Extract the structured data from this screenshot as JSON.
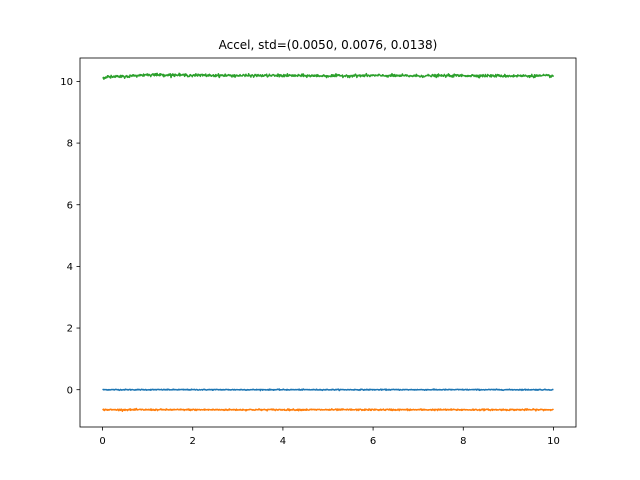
{
  "chart_data": {
    "type": "line",
    "title": "Accel, std=(0.0050, 0.0076, 0.0138)",
    "xlabel": "",
    "ylabel": "",
    "xlim": [
      -0.5,
      10.5
    ],
    "ylim": [
      -1.21,
      10.76
    ],
    "x_ticks": [
      0,
      2,
      4,
      6,
      8,
      10
    ],
    "y_ticks": [
      0,
      2,
      4,
      6,
      8,
      10
    ],
    "grid": false,
    "legend": "none",
    "series": [
      {
        "color": "#1f77b4",
        "x": [
          0,
          1,
          2,
          3,
          4,
          5,
          6,
          7,
          8,
          9,
          10
        ],
        "values": [
          0.0,
          0.0,
          0.0,
          0.0,
          0.0,
          0.0,
          0.0,
          0.0,
          0.0,
          0.0,
          0.0
        ],
        "noise_std": 0.005
      },
      {
        "color": "#ff7f0e",
        "x": [
          0,
          1,
          2,
          3,
          4,
          5,
          6,
          7,
          8,
          9,
          10
        ],
        "values": [
          -0.65,
          -0.65,
          -0.65,
          -0.65,
          -0.65,
          -0.65,
          -0.65,
          -0.65,
          -0.65,
          -0.65,
          -0.65
        ],
        "noise_std": 0.0076
      },
      {
        "color": "#2ca02c",
        "x": [
          0,
          0.5,
          1,
          1.5,
          2,
          3,
          4,
          5,
          6,
          7,
          8,
          9,
          10
        ],
        "values": [
          10.14,
          10.16,
          10.22,
          10.21,
          10.2,
          10.19,
          10.19,
          10.18,
          10.19,
          10.18,
          10.19,
          10.18,
          10.18
        ],
        "noise_std": 0.0138
      }
    ]
  }
}
